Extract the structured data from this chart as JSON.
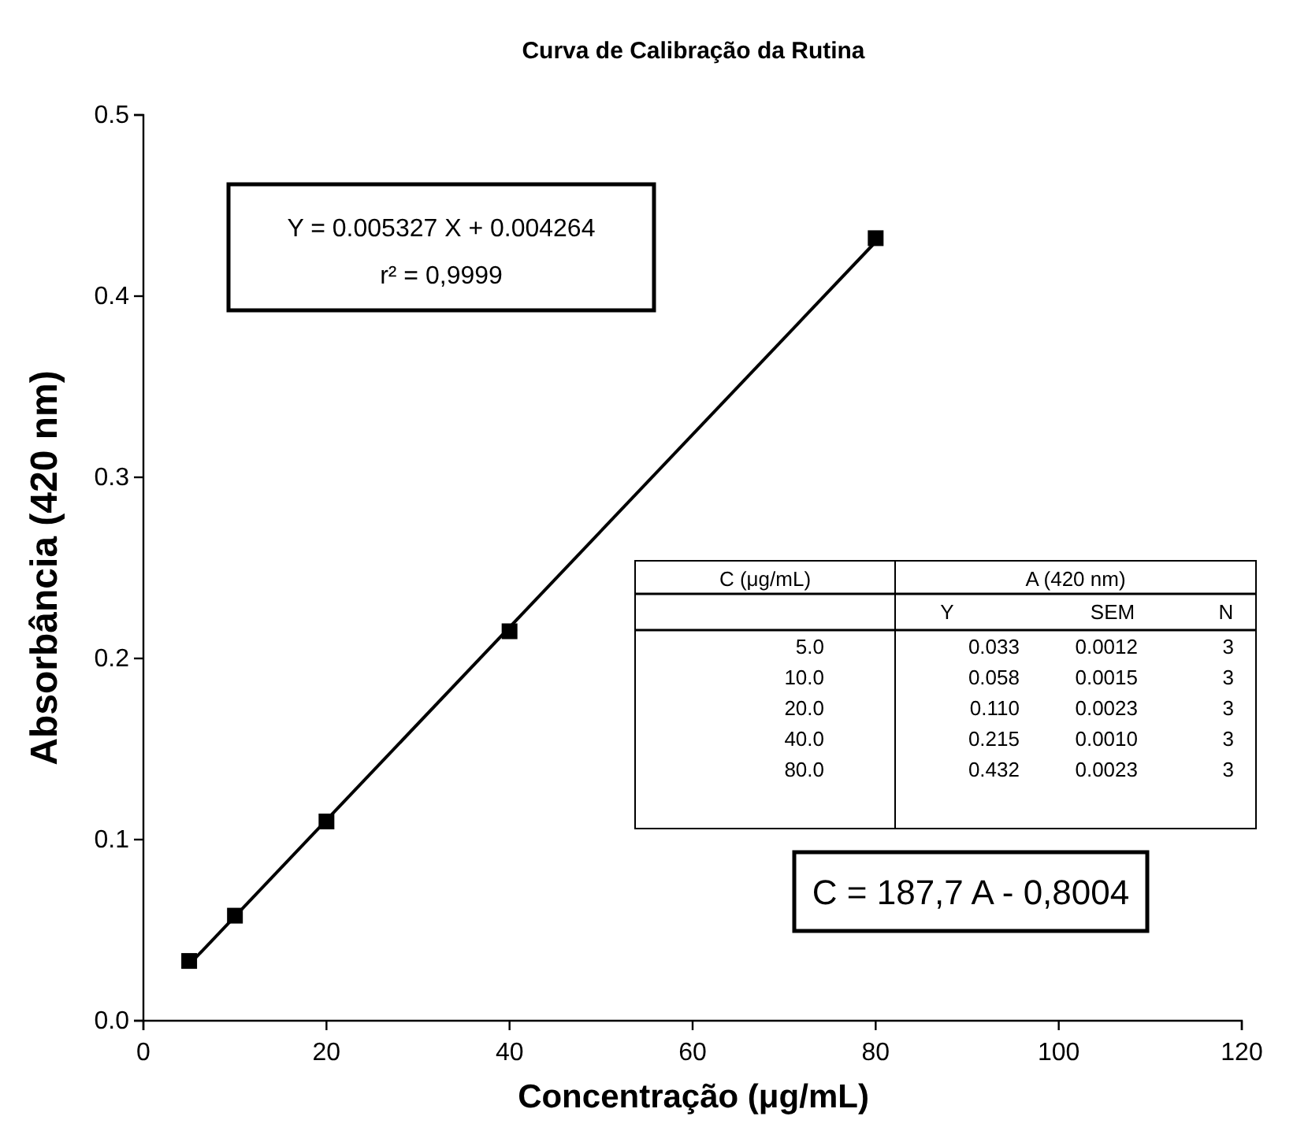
{
  "chart_data": {
    "type": "scatter",
    "title": "Curva de Calibração da Rutina",
    "xlabel": "Concentração (μg/mL)",
    "ylabel": "Absorbância (420 nm)",
    "xlim": [
      0,
      120
    ],
    "xticks": [
      0,
      20,
      40,
      60,
      80,
      100,
      120
    ],
    "ylim": [
      0,
      0.5
    ],
    "yticks": [
      {
        "value": 0,
        "label": "0.0"
      },
      0.1,
      0.2,
      0.3,
      0.4,
      0.5
    ],
    "x": [
      5,
      10,
      20,
      40,
      80
    ],
    "grid": false,
    "series": [
      {
        "color": "#000000",
        "marker": "square",
        "values": [
          0.033,
          0.058,
          0.11,
          0.215,
          0.432
        ]
      },
      {
        "type": "line",
        "color": "#000000",
        "x": [
          5,
          80
        ],
        "values": [
          0.031,
          0.43
        ]
      }
    ],
    "annotations": [
      "Y = 0.005327 X + 0.004264",
      "r² = 0,9999",
      "C = 187,7 A - 0,8004",
      "C (μg/mL)",
      "A (420 nm)",
      "Y",
      "SEM",
      "N",
      "5.0",
      "10.0",
      "20.0",
      "40.0",
      "80.0",
      "0.033",
      "0.058",
      "0.110",
      "0.215",
      "0.432",
      "0.0012",
      "0.0015",
      "0.0023",
      "0.0010",
      "0.0023",
      "3",
      "3",
      "3",
      "3",
      "3"
    ]
  }
}
